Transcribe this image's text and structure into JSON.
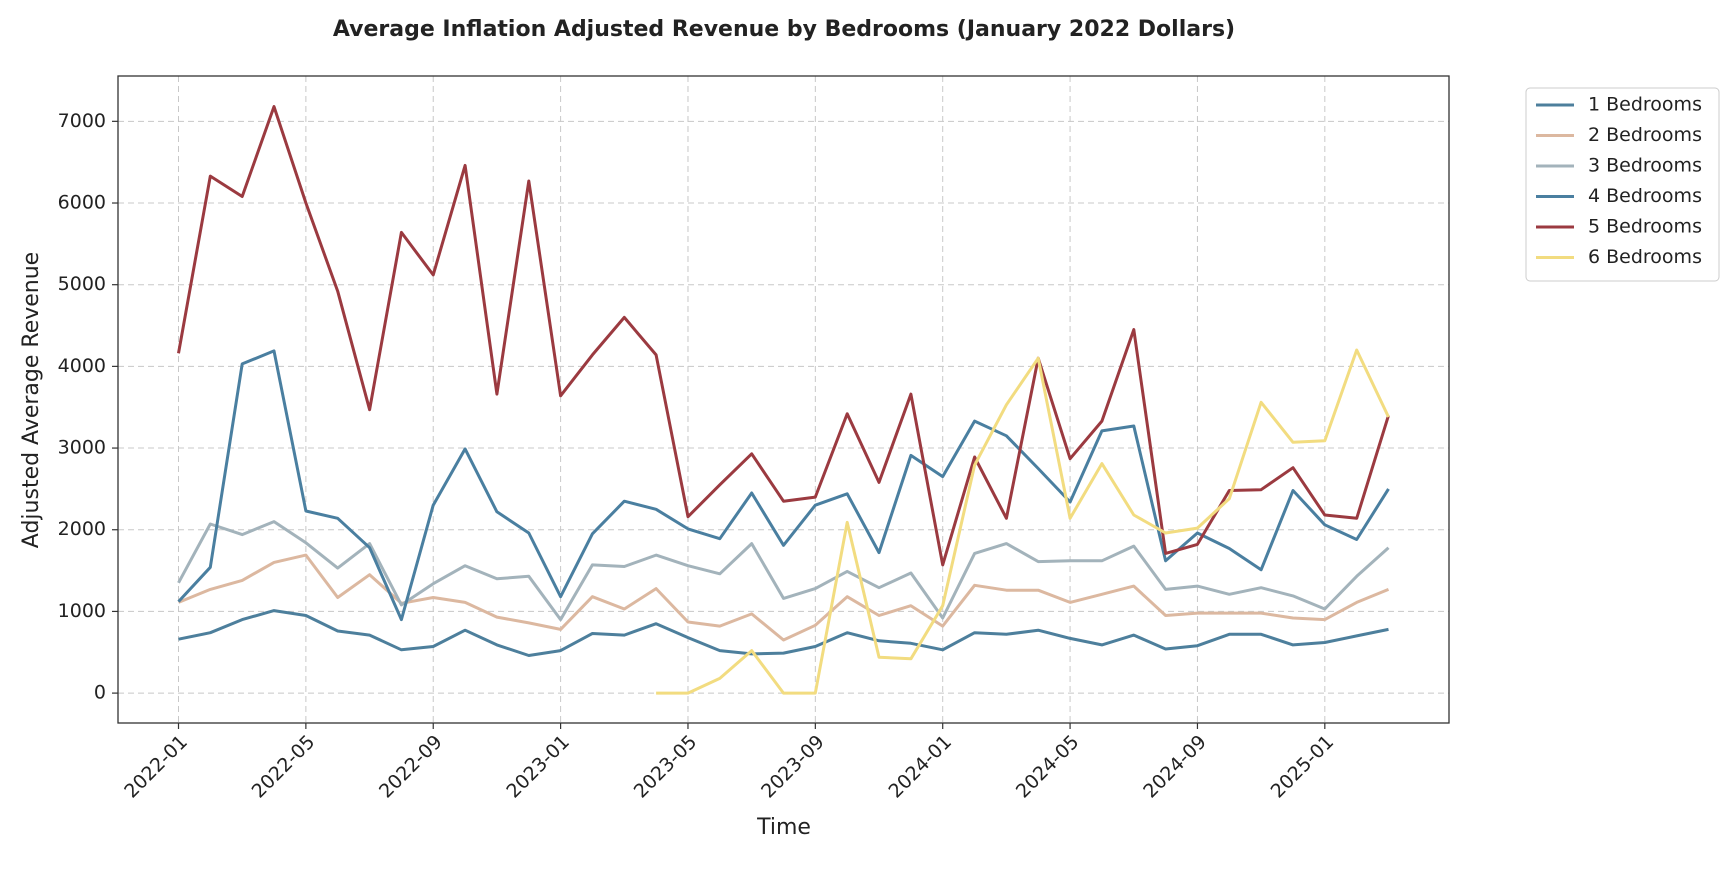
{
  "chart_data": {
    "type": "line",
    "title": "Average Inflation Adjusted Revenue by Bedrooms (January 2022 Dollars)",
    "xlabel": "Time",
    "ylabel": "Adjusted Average Revenue",
    "x": [
      "2022-01",
      "2022-02",
      "2022-03",
      "2022-04",
      "2022-05",
      "2022-06",
      "2022-07",
      "2022-08",
      "2022-09",
      "2022-10",
      "2022-11",
      "2022-12",
      "2023-01",
      "2023-02",
      "2023-03",
      "2023-04",
      "2023-05",
      "2023-06",
      "2023-07",
      "2023-08",
      "2023-09",
      "2023-10",
      "2023-11",
      "2023-12",
      "2024-01",
      "2024-02",
      "2024-03",
      "2024-04",
      "2024-05",
      "2024-06",
      "2024-07",
      "2024-08",
      "2024-09",
      "2024-10",
      "2024-11",
      "2024-12",
      "2025-01",
      "2025-02",
      "2025-03"
    ],
    "xticks": [
      "2022-01",
      "2022-05",
      "2022-09",
      "2023-01",
      "2023-05",
      "2023-09",
      "2024-01",
      "2024-05",
      "2024-09",
      "2025-01"
    ],
    "ylim": [
      -366,
      7555
    ],
    "yticks": [
      0,
      1000,
      2000,
      3000,
      4000,
      5000,
      6000,
      7000
    ],
    "grid": true,
    "legend": "outside upper right",
    "series": [
      {
        "name": "1 Bedrooms",
        "color": "#4d7f9c",
        "values": [
          660,
          740,
          900,
          1010,
          950,
          760,
          710,
          530,
          570,
          770,
          590,
          460,
          520,
          730,
          710,
          850,
          680,
          520,
          480,
          490,
          570,
          740,
          640,
          610,
          530,
          740,
          720,
          770,
          670,
          590,
          710,
          540,
          580,
          720,
          720,
          590,
          620,
          700,
          780
        ]
      },
      {
        "name": "2 Bedrooms",
        "color": "#dcb8a0",
        "values": [
          1110,
          1270,
          1380,
          1600,
          1690,
          1170,
          1450,
          1100,
          1170,
          1110,
          930,
          860,
          780,
          1180,
          1030,
          1280,
          870,
          820,
          970,
          650,
          830,
          1180,
          950,
          1070,
          820,
          1320,
          1260,
          1260,
          1110,
          1210,
          1310,
          950,
          980,
          980,
          980,
          920,
          900,
          1110,
          1270
        ]
      },
      {
        "name": "3 Bedrooms",
        "color": "#a3b3bb",
        "values": [
          1350,
          2070,
          1940,
          2100,
          1840,
          1530,
          1830,
          1080,
          1340,
          1560,
          1400,
          1430,
          900,
          1570,
          1550,
          1690,
          1560,
          1460,
          1830,
          1160,
          1280,
          1490,
          1290,
          1470,
          920,
          1710,
          1830,
          1610,
          1620,
          1620,
          1800,
          1270,
          1310,
          1210,
          1290,
          1190,
          1030,
          1430,
          1780
        ]
      },
      {
        "name": "4 Bedrooms",
        "color": "#4a7fa0",
        "values": [
          1120,
          1540,
          4030,
          4190,
          2230,
          2140,
          1780,
          900,
          2300,
          2990,
          2220,
          1960,
          1180,
          1950,
          2350,
          2250,
          2010,
          1890,
          2450,
          1810,
          2300,
          2440,
          1720,
          2910,
          2650,
          3330,
          3150,
          2750,
          2340,
          3210,
          3270,
          1620,
          1960,
          1770,
          1510,
          2480,
          2060,
          1880,
          2500
        ]
      },
      {
        "name": "5 Bedrooms",
        "color": "#9b3a40",
        "values": [
          4160,
          6330,
          6080,
          7180,
          6000,
          4920,
          3470,
          5640,
          5120,
          6460,
          3660,
          6270,
          3640,
          4140,
          4600,
          4140,
          2160,
          2550,
          2930,
          2350,
          2400,
          3420,
          2580,
          3660,
          1570,
          2890,
          2140,
          4100,
          2870,
          3330,
          4450,
          1710,
          1820,
          2480,
          2490,
          2760,
          2180,
          2140,
          3400
        ]
      },
      {
        "name": "6 Bedrooms",
        "color": "#f2dc80",
        "values": [
          null,
          null,
          null,
          null,
          null,
          null,
          null,
          null,
          null,
          null,
          null,
          null,
          null,
          null,
          null,
          0,
          0,
          180,
          520,
          0,
          0,
          2090,
          440,
          420,
          1070,
          2790,
          3530,
          4100,
          2140,
          2810,
          2180,
          1960,
          2020,
          2380,
          3560,
          3070,
          3090,
          4200,
          3380
        ]
      }
    ]
  }
}
